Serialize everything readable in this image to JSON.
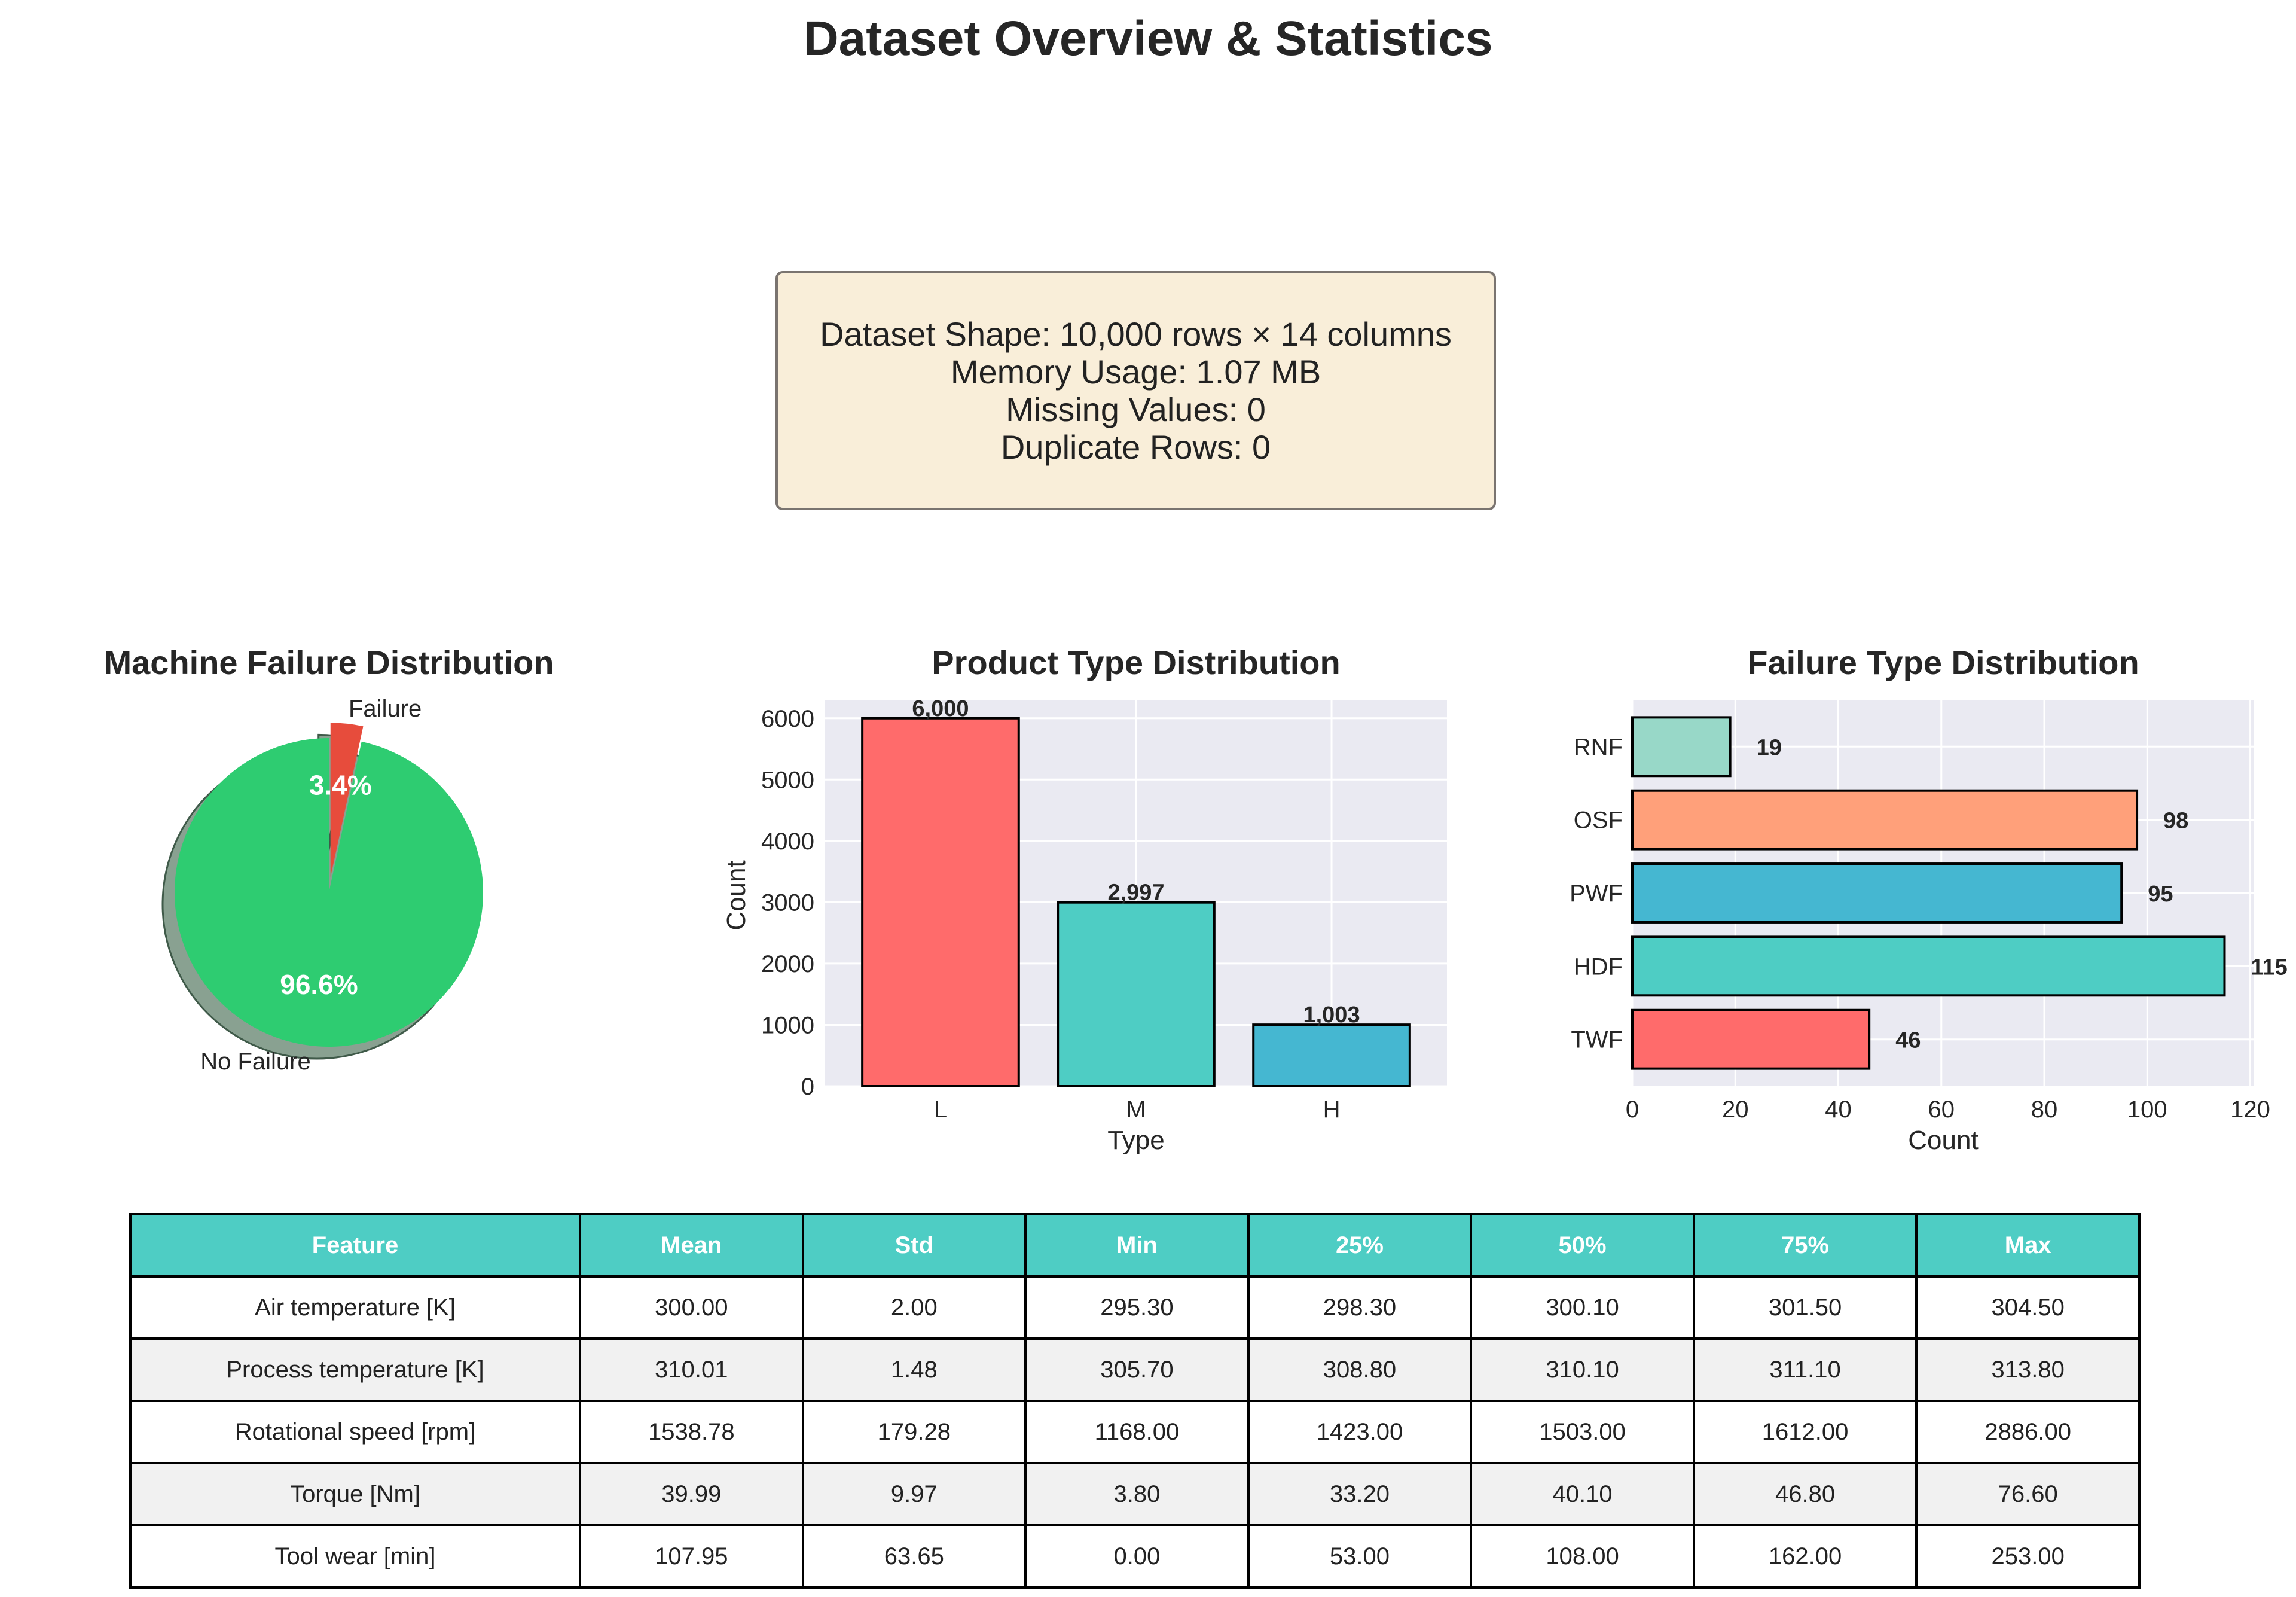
{
  "page": {
    "title": "Dataset Overview & Statistics"
  },
  "info_box": {
    "lines": [
      "Dataset Shape: 10,000 rows × 14 columns",
      "Memory Usage: 1.07 MB",
      "Missing Values: 0",
      "Duplicate Rows: 0"
    ]
  },
  "chart_data": [
    {
      "type": "pie",
      "title": "Machine Failure Distribution",
      "labels": [
        "No Failure",
        "Failure"
      ],
      "values": [
        96.6,
        3.4
      ],
      "pct_labels": [
        "96.6%",
        "3.4%"
      ],
      "colors": [
        "#2ecc71",
        "#e74c3c"
      ],
      "exploded": "Failure",
      "shadow": true
    },
    {
      "type": "bar",
      "title": "Product Type Distribution",
      "categories": [
        "L",
        "M",
        "H"
      ],
      "values": [
        6000,
        2997,
        1003
      ],
      "value_labels": [
        "6,000",
        "2,997",
        "1,003"
      ],
      "colors": [
        "#ff6b6b",
        "#4ecdc4",
        "#45b7d1"
      ],
      "xlabel": "Type",
      "ylabel": "Count",
      "ylim": [
        0,
        6300
      ],
      "yticks": [
        0,
        1000,
        2000,
        3000,
        4000,
        5000,
        6000
      ],
      "grid": true
    },
    {
      "type": "bar",
      "orientation": "horizontal",
      "title": "Failure Type Distribution",
      "categories": [
        "TWF",
        "HDF",
        "PWF",
        "OSF",
        "RNF"
      ],
      "values": [
        46,
        115,
        95,
        98,
        19
      ],
      "colors": [
        "#ff6b6b",
        "#4ecdc4",
        "#45b7d1",
        "#ffa07a",
        "#98d8c8"
      ],
      "xlabel": "Count",
      "xlim": [
        0,
        120.75
      ],
      "xticks": [
        0,
        20,
        40,
        60,
        80,
        100,
        120
      ],
      "grid": true
    },
    {
      "type": "table",
      "columns": [
        "Feature",
        "Mean",
        "Std",
        "Min",
        "25%",
        "50%",
        "75%",
        "Max"
      ],
      "rows": [
        [
          "Air temperature [K]",
          "300.00",
          "2.00",
          "295.30",
          "298.30",
          "300.10",
          "301.50",
          "304.50"
        ],
        [
          "Process temperature [K]",
          "310.01",
          "1.48",
          "305.70",
          "308.80",
          "310.10",
          "311.10",
          "313.80"
        ],
        [
          "Rotational speed [rpm]",
          "1538.78",
          "179.28",
          "1168.00",
          "1423.00",
          "1503.00",
          "1612.00",
          "2886.00"
        ],
        [
          "Torque [Nm]",
          "39.99",
          "9.97",
          "3.80",
          "33.20",
          "40.10",
          "46.80",
          "76.60"
        ],
        [
          "Tool wear [min]",
          "107.95",
          "63.65",
          "0.00",
          "53.00",
          "108.00",
          "162.00",
          "253.00"
        ]
      ],
      "header_color": "#4ecdc4",
      "stripe_color": "#f1f1f1"
    }
  ]
}
